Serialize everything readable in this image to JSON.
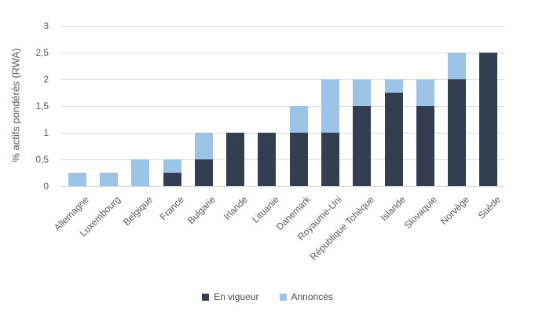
{
  "chart_data": {
    "type": "bar",
    "stacked": true,
    "title": "",
    "xlabel": "",
    "ylabel": "% actifs pondérés (RWA)",
    "ylim": [
      0,
      3
    ],
    "ytick_values": [
      0,
      0.5,
      1,
      1.5,
      2,
      2.5,
      3
    ],
    "ytick_labels": [
      "0",
      "0,5",
      "1",
      "1,5",
      "2",
      "2,5",
      "3"
    ],
    "grid": true,
    "legend_position": "bottom",
    "categories": [
      "Allemagne",
      "Luxembourg",
      "Belgique",
      "France",
      "Bulgarie",
      "Irlande",
      "Lituanie",
      "Danemark",
      "Royaume-Uni",
      "République Tchèque",
      "Islande",
      "Slovaquie",
      "Norvège",
      "Suède"
    ],
    "series": [
      {
        "name": "En vigueur",
        "color": "#333F50",
        "values": [
          0,
          0,
          0,
          0.25,
          0.5,
          1,
          1,
          1,
          1,
          1.5,
          1.75,
          1.5,
          2,
          2.5
        ]
      },
      {
        "name": "Annoncés",
        "color": "#9DC3E6",
        "values": [
          0.25,
          0.25,
          0.5,
          0.25,
          0.5,
          0,
          0,
          0.5,
          1,
          0.5,
          0.25,
          0.5,
          0.5,
          0
        ]
      }
    ]
  },
  "colors": {
    "gridline": "#D9D9D9",
    "axis_text": "#595959"
  }
}
